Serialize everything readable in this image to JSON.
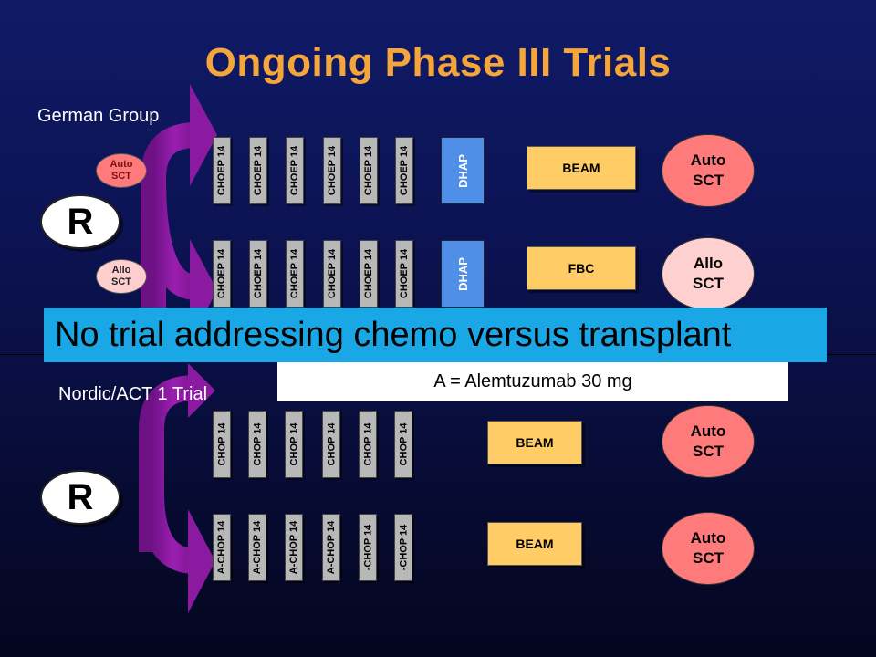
{
  "slide": {
    "title": "Ongoing Phase III Trials",
    "banner": "No trial addressing chemo versus transplant",
    "note": "A = Alemtuzumab 30 mg"
  },
  "german": {
    "label": "German Group",
    "randomize": "R",
    "arm1": {
      "tag_line1": "Auto",
      "tag_line2": "SCT",
      "courses": [
        "CHOEP 14",
        "CHOEP 14",
        "CHOEP 14",
        "CHOEP 14",
        "CHOEP 14",
        "CHOEP 14"
      ],
      "salvage": "DHAP",
      "conditioning": "BEAM",
      "result_line1": "Auto",
      "result_line2": "SCT"
    },
    "arm2": {
      "tag_line1": "Allo",
      "tag_line2": "SCT",
      "courses": [
        "CHOEP 14",
        "CHOEP 14",
        "CHOEP 14",
        "CHOEP 14",
        "CHOEP 14",
        "CHOEP 14"
      ],
      "salvage": "DHAP",
      "conditioning": "FBC",
      "result_line1": "Allo",
      "result_line2": "SCT"
    }
  },
  "nordic": {
    "label": "Nordic/ACT 1 Trial",
    "randomize": "R",
    "arm1": {
      "courses": [
        "CHOP 14",
        "CHOP 14",
        "CHOP 14",
        "CHOP 14",
        "CHOP 14",
        "CHOP 14"
      ],
      "conditioning": "BEAM",
      "result_line1": "Auto",
      "result_line2": "SCT"
    },
    "arm2": {
      "courses": [
        "A-CHOP 14",
        "A-CHOP 14",
        "A-CHOP 14",
        "A-CHOP 14",
        "-CHOP 14",
        "-CHOP 14"
      ],
      "conditioning": "BEAM",
      "result_line1": "Auto",
      "result_line2": "SCT"
    }
  },
  "colors": {
    "title": "#f5a63a",
    "arrow": "#8a1aa0",
    "banner": "#1aa7e6",
    "auto_oval": "#ff7a7a",
    "allo_oval": "#ffd0d0",
    "conditioning_box": "#ffcc66",
    "dhap_box": "#4f8fe8",
    "course_box": "#b8b8b8"
  }
}
